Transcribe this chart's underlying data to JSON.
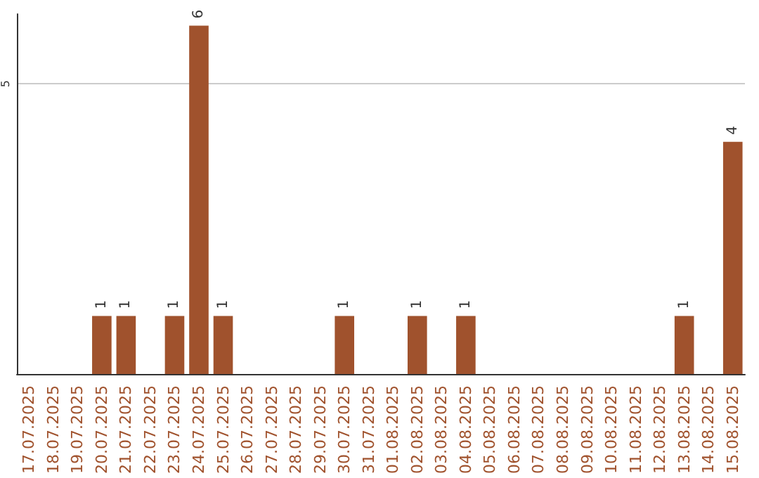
{
  "chart_data": {
    "type": "bar",
    "categories": [
      "17.07.2025",
      "18.07.2025",
      "19.07.2025",
      "20.07.2025",
      "21.07.2025",
      "22.07.2025",
      "23.07.2025",
      "24.07.2025",
      "25.07.2025",
      "26.07.2025",
      "27.07.2025",
      "28.07.2025",
      "29.07.2025",
      "30.07.2025",
      "31.07.2025",
      "01.08.2025",
      "02.08.2025",
      "03.08.2025",
      "04.08.2025",
      "05.08.2025",
      "06.08.2025",
      "07.08.2025",
      "08.08.2025",
      "09.08.2025",
      "10.08.2025",
      "11.08.2025",
      "12.08.2025",
      "13.08.2025",
      "14.08.2025",
      "15.08.2025"
    ],
    "values": [
      0,
      0,
      0,
      1,
      1,
      0,
      1,
      6,
      1,
      0,
      0,
      0,
      0,
      1,
      0,
      0,
      1,
      0,
      1,
      0,
      0,
      0,
      0,
      0,
      0,
      0,
      0,
      1,
      0,
      4
    ],
    "value_labels": [
      null,
      null,
      null,
      "1",
      "1",
      null,
      "1",
      "6",
      "1",
      null,
      null,
      null,
      null,
      "1",
      null,
      null,
      "1",
      null,
      "1",
      null,
      null,
      null,
      null,
      null,
      null,
      null,
      null,
      "1",
      null,
      "4"
    ],
    "color": "#a0522d",
    "ylim": [
      0,
      6.2
    ],
    "yticks": [
      5
    ],
    "grid": "y"
  }
}
